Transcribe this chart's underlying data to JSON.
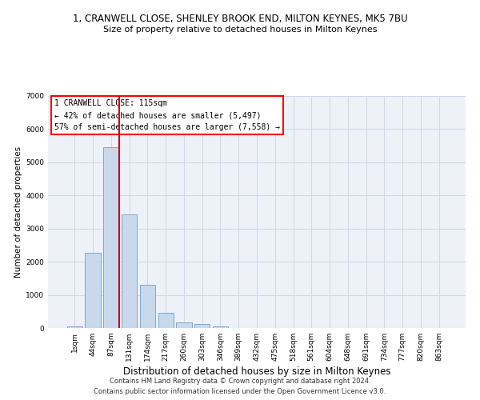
{
  "title": "1, CRANWELL CLOSE, SHENLEY BROOK END, MILTON KEYNES, MK5 7BU",
  "subtitle": "Size of property relative to detached houses in Milton Keynes",
  "xlabel": "Distribution of detached houses by size in Milton Keynes",
  "ylabel": "Number of detached properties",
  "footer_line1": "Contains HM Land Registry data © Crown copyright and database right 2024.",
  "footer_line2": "Contains public sector information licensed under the Open Government Licence v3.0.",
  "bar_labels": [
    "1sqm",
    "44sqm",
    "87sqm",
    "131sqm",
    "174sqm",
    "217sqm",
    "260sqm",
    "303sqm",
    "346sqm",
    "389sqm",
    "432sqm",
    "475sqm",
    "518sqm",
    "561sqm",
    "604sqm",
    "648sqm",
    "691sqm",
    "734sqm",
    "777sqm",
    "820sqm",
    "863sqm"
  ],
  "bar_values": [
    50,
    2270,
    5450,
    3420,
    1300,
    450,
    180,
    120,
    60,
    10,
    0,
    0,
    0,
    0,
    0,
    0,
    0,
    0,
    0,
    0,
    0
  ],
  "bar_color": "#c9d9eb",
  "bar_edge_color": "#7aa8d0",
  "vline_x_index": 2,
  "vline_color": "#cc0000",
  "ylim": [
    0,
    7000
  ],
  "yticks": [
    0,
    1000,
    2000,
    3000,
    4000,
    5000,
    6000,
    7000
  ],
  "annotation_text": "1 CRANWELL CLOSE: 115sqm\n← 42% of detached houses are smaller (5,497)\n57% of semi-detached houses are larger (7,558) →",
  "grid_color": "#d0d8e8",
  "bg_color": "#eef2f8",
  "title_fontsize": 8.5,
  "subtitle_fontsize": 8,
  "ylabel_fontsize": 7.5,
  "xlabel_fontsize": 8.5,
  "tick_fontsize": 6.5,
  "footer_fontsize": 6
}
